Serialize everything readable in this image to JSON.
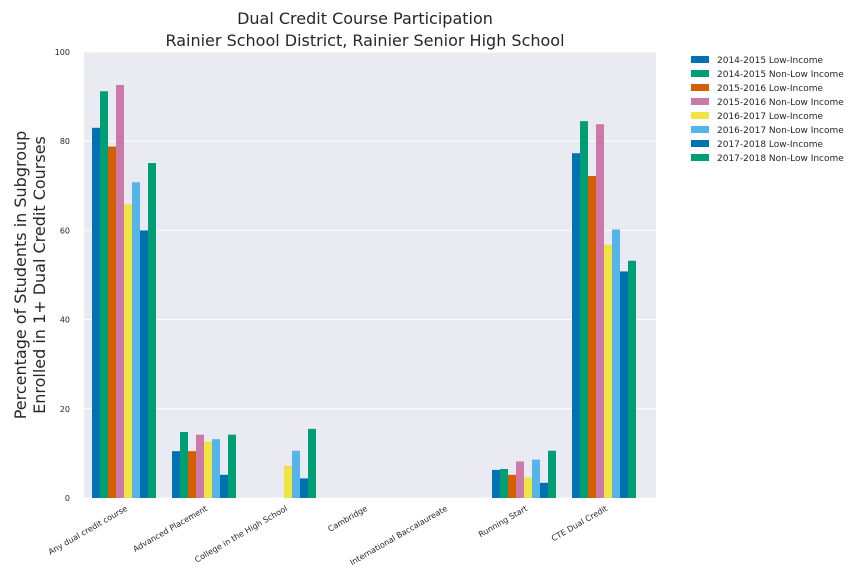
{
  "chart_data": {
    "type": "bar",
    "title": [
      "Dual Credit Course Participation",
      "Rainier School District, Rainier Senior High School"
    ],
    "ylabel": [
      "Percentage of Students in Subgroup",
      "Enrolled in 1+ Dual Credit Courses"
    ],
    "xlabel": "",
    "ylim": [
      0,
      100
    ],
    "yticks": [
      "0",
      "20",
      "40",
      "60",
      "80",
      "100"
    ],
    "grid": true,
    "legend_position": "outside-top-right",
    "categories": [
      "Any dual credit course",
      "Advanced Placement",
      "College in the High School",
      "Cambridge",
      "International Baccalaureate",
      "Running Start",
      "CTE Dual Credit"
    ],
    "series": [
      {
        "name": "2014-2015 Low-Income",
        "color": "#0072b2",
        "values": [
          83,
          10.5,
          null,
          null,
          null,
          6.3,
          77.3
        ]
      },
      {
        "name": "2014-2015 Non-Low Income",
        "color": "#009e73",
        "values": [
          91.2,
          14.8,
          null,
          null,
          null,
          6.5,
          84.5
        ]
      },
      {
        "name": "2015-2016 Low-Income",
        "color": "#d55e00",
        "values": [
          78.8,
          10.5,
          null,
          null,
          null,
          5.2,
          72.2
        ]
      },
      {
        "name": "2015-2016 Non-Low Income",
        "color": "#cc79a7",
        "values": [
          92.6,
          14.2,
          null,
          null,
          null,
          8.2,
          83.8
        ]
      },
      {
        "name": "2016-2017 Low-Income",
        "color": "#f0e442",
        "values": [
          65.8,
          12.6,
          7.2,
          null,
          null,
          4.6,
          56.8
        ]
      },
      {
        "name": "2016-2017 Non-Low Income",
        "color": "#56b4e9",
        "values": [
          70.8,
          13.2,
          10.6,
          null,
          null,
          8.6,
          60.2
        ]
      },
      {
        "name": "2017-2018 Low-Income",
        "color": "#0072b2",
        "values": [
          60,
          5.2,
          4.4,
          null,
          null,
          3.4,
          50.8
        ]
      },
      {
        "name": "2017-2018 Non-Low Income",
        "color": "#009e73",
        "values": [
          75.1,
          14.2,
          15.5,
          null,
          null,
          10.6,
          53.2
        ]
      }
    ]
  }
}
